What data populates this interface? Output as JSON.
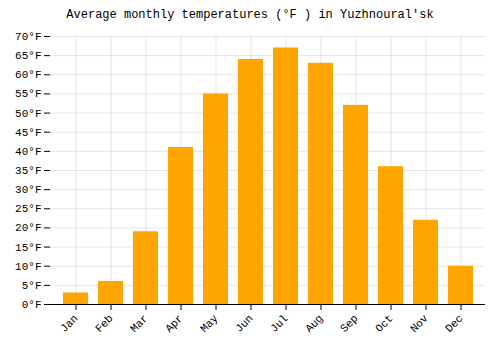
{
  "chart_data": {
    "type": "bar",
    "title": "Average monthly temperatures (°F ) in Yuzhnouralʹ​sk",
    "categories": [
      "Jan",
      "Feb",
      "Mar",
      "Apr",
      "May",
      "Jun",
      "Jul",
      "Aug",
      "Sep",
      "Oct",
      "Nov",
      "Dec"
    ],
    "values": [
      3,
      6,
      19,
      41,
      55,
      64,
      67,
      63,
      52,
      36,
      22,
      10
    ],
    "color": "#FFA500",
    "ylim": [
      0,
      70
    ],
    "yticks": [
      {
        "value": 0,
        "label": "0°F"
      },
      {
        "value": 5,
        "label": "5°F"
      },
      {
        "value": 10,
        "label": "10°F"
      },
      {
        "value": 15,
        "label": "15°F"
      },
      {
        "value": 20,
        "label": "20°F"
      },
      {
        "value": 25,
        "label": "25°F"
      },
      {
        "value": 30,
        "label": "30°F"
      },
      {
        "value": 35,
        "label": "35°F"
      },
      {
        "value": 40,
        "label": "40°F"
      },
      {
        "value": 45,
        "label": "45°F"
      },
      {
        "value": 50,
        "label": "50°F"
      },
      {
        "value": 55,
        "label": "55°F"
      },
      {
        "value": 60,
        "label": "60°F"
      },
      {
        "value": 65,
        "label": "65°F"
      },
      {
        "value": 70,
        "label": "70°F"
      }
    ],
    "grid": true
  }
}
